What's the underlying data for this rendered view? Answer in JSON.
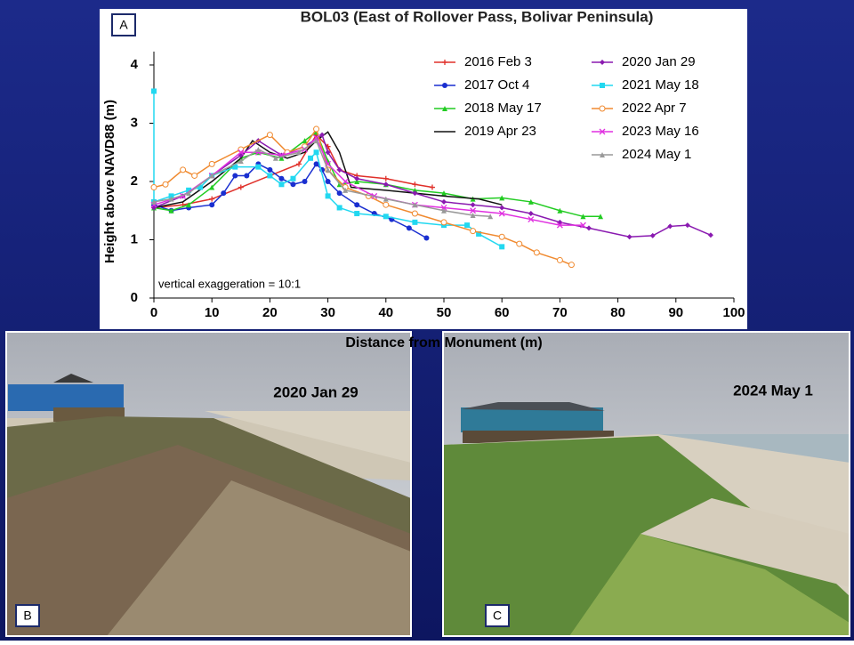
{
  "chart_data": {
    "type": "line",
    "title": "BOL03 (East of Rollover Pass, Bolivar Peninsula)",
    "xlabel": "Distance from Monument (m)",
    "ylabel": "Height above NAVD88 (m)",
    "annotation": "vertical exaggeration = 10:1",
    "xlim": [
      0,
      100
    ],
    "xticks": [
      0,
      10,
      20,
      30,
      40,
      50,
      60,
      70,
      80,
      90,
      100
    ],
    "ylim": [
      0,
      4
    ],
    "yticks": [
      0,
      1,
      2,
      3,
      4
    ],
    "series": [
      {
        "name": "2016 Feb 3",
        "color": "#e0302a",
        "marker": "plus",
        "x": [
          0,
          5,
          10,
          15,
          20,
          25,
          28,
          30,
          32,
          35,
          40,
          45,
          48
        ],
        "values": [
          1.55,
          1.6,
          1.7,
          1.9,
          2.1,
          2.3,
          2.8,
          2.6,
          2.2,
          2.1,
          2.05,
          1.95,
          1.9
        ]
      },
      {
        "name": "2017 Oct 4",
        "color": "#1a2fd0",
        "marker": "circle",
        "x": [
          0,
          3,
          6,
          10,
          12,
          14,
          16,
          18,
          20,
          22,
          24,
          26,
          28,
          29,
          30,
          32,
          35,
          38,
          41,
          44,
          47
        ],
        "values": [
          1.6,
          1.5,
          1.55,
          1.6,
          1.8,
          2.1,
          2.1,
          2.3,
          2.2,
          2.05,
          1.95,
          2.0,
          2.3,
          2.2,
          2.0,
          1.8,
          1.6,
          1.45,
          1.35,
          1.2,
          1.03
        ]
      },
      {
        "name": "2018 May 17",
        "color": "#22cc22",
        "marker": "triangle",
        "x": [
          0,
          3,
          6,
          10,
          15,
          18,
          22,
          26,
          28,
          30,
          32,
          35,
          40,
          45,
          50,
          55,
          60,
          65,
          70,
          74,
          77
        ],
        "values": [
          1.55,
          1.5,
          1.6,
          1.9,
          2.4,
          2.5,
          2.4,
          2.7,
          2.85,
          2.35,
          1.95,
          2.0,
          1.95,
          1.85,
          1.8,
          1.7,
          1.72,
          1.65,
          1.5,
          1.4,
          1.4
        ]
      },
      {
        "name": "2019 Apr 23",
        "color": "#111111",
        "marker": "none",
        "x": [
          0,
          5,
          10,
          15,
          17,
          20,
          23,
          26,
          28,
          30,
          32,
          34,
          40,
          50,
          56,
          60
        ],
        "values": [
          1.55,
          1.65,
          2.0,
          2.4,
          2.7,
          2.5,
          2.4,
          2.5,
          2.7,
          2.85,
          2.5,
          1.9,
          1.85,
          1.75,
          1.7,
          1.6
        ]
      },
      {
        "name": "2020 Jan 29",
        "color": "#8a1ab0",
        "marker": "diamond",
        "x": [
          0,
          5,
          10,
          15,
          18,
          22,
          26,
          29,
          30,
          32,
          35,
          40,
          45,
          50,
          55,
          60,
          65,
          70,
          75,
          82,
          86,
          89,
          92,
          96
        ],
        "values": [
          1.55,
          1.75,
          2.1,
          2.45,
          2.7,
          2.45,
          2.6,
          2.8,
          2.5,
          2.2,
          2.05,
          1.95,
          1.8,
          1.65,
          1.6,
          1.55,
          1.45,
          1.3,
          1.2,
          1.05,
          1.07,
          1.23,
          1.25,
          1.08
        ]
      },
      {
        "name": "2021 May 18",
        "color": "#22d8f0",
        "marker": "square",
        "x": [
          0,
          0,
          3,
          6,
          8,
          10,
          14,
          18,
          20,
          22,
          24,
          27,
          28,
          30,
          32,
          35,
          40,
          45,
          50,
          54,
          56,
          60
        ],
        "values": [
          3.55,
          1.65,
          1.75,
          1.85,
          1.9,
          2.1,
          2.25,
          2.25,
          2.1,
          1.95,
          2.05,
          2.4,
          2.5,
          1.75,
          1.55,
          1.45,
          1.4,
          1.3,
          1.25,
          1.25,
          1.1,
          0.88
        ]
      },
      {
        "name": "2022 Apr 7",
        "color": "#f08a30",
        "marker": "opencircle",
        "x": [
          0,
          2,
          5,
          7,
          10,
          15,
          20,
          23,
          26,
          28,
          30,
          33,
          37,
          40,
          45,
          50,
          55,
          60,
          63,
          66,
          70,
          72
        ],
        "values": [
          1.9,
          1.95,
          2.2,
          2.1,
          2.3,
          2.55,
          2.8,
          2.5,
          2.6,
          2.9,
          2.2,
          1.9,
          1.75,
          1.6,
          1.45,
          1.3,
          1.15,
          1.05,
          0.93,
          0.78,
          0.65,
          0.57
        ]
      },
      {
        "name": "2023 May 16",
        "color": "#e030e0",
        "marker": "x",
        "x": [
          0,
          5,
          10,
          15,
          18,
          22,
          26,
          28,
          30,
          33,
          38,
          45,
          50,
          55,
          60,
          65,
          70,
          74
        ],
        "values": [
          1.6,
          1.75,
          2.1,
          2.5,
          2.5,
          2.45,
          2.55,
          2.75,
          2.3,
          2.0,
          1.75,
          1.6,
          1.55,
          1.5,
          1.45,
          1.35,
          1.25,
          1.25
        ]
      },
      {
        "name": "2024 May 1",
        "color": "#999999",
        "marker": "triangle",
        "x": [
          0,
          3,
          6,
          10,
          15,
          18,
          21,
          25,
          28,
          30,
          33,
          40,
          45,
          50,
          55,
          58
        ],
        "values": [
          1.65,
          1.7,
          1.8,
          2.1,
          2.35,
          2.55,
          2.4,
          2.5,
          2.7,
          2.2,
          1.85,
          1.7,
          1.6,
          1.5,
          1.42,
          1.4
        ]
      }
    ]
  },
  "panel_labels": [
    "A",
    "B",
    "C"
  ],
  "photos": [
    {
      "caption": "2020 Jan 29"
    },
    {
      "caption": "2024 May 1"
    }
  ]
}
